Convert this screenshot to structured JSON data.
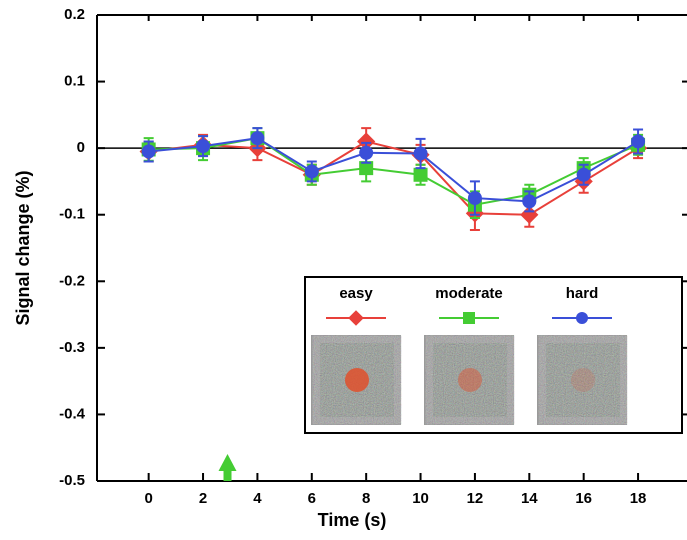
{
  "chart_data": {
    "type": "line",
    "xlabel": "Time (s)",
    "ylabel": "Signal change (%)",
    "x": [
      0,
      2,
      4,
      6,
      8,
      10,
      12,
      14,
      16,
      18
    ],
    "xlim": [
      -1.9,
      19.8
    ],
    "xticks": [
      0,
      2,
      4,
      6,
      8,
      10,
      12,
      14,
      16,
      18
    ],
    "ylim": [
      -0.5,
      0.2
    ],
    "yticks": [
      0.2,
      0.1,
      0,
      -0.1,
      -0.2,
      -0.3,
      -0.4,
      -0.5
    ],
    "arrow_x": 2.9,
    "arrow_color": "#44cc33",
    "series": [
      {
        "name": "easy",
        "color": "#e8403a",
        "marker": "diamond",
        "values": [
          -0.005,
          0.005,
          0.0,
          -0.04,
          0.01,
          -0.01,
          -0.098,
          -0.1,
          -0.05,
          0.0
        ],
        "errors": [
          0.015,
          0.015,
          0.018,
          0.015,
          0.02,
          0.015,
          0.025,
          0.018,
          0.017,
          0.015
        ]
      },
      {
        "name": "moderate",
        "color": "#44cc33",
        "marker": "square",
        "values": [
          -0.002,
          0.0,
          0.015,
          -0.04,
          -0.03,
          -0.04,
          -0.085,
          -0.07,
          -0.03,
          0.005
        ],
        "errors": [
          0.017,
          0.018,
          0.015,
          0.015,
          0.02,
          0.015,
          0.02,
          0.015,
          0.015,
          0.015
        ]
      },
      {
        "name": "hard",
        "color": "#3a4fd8",
        "marker": "circle",
        "values": [
          -0.005,
          0.003,
          0.015,
          -0.035,
          -0.007,
          -0.008,
          -0.075,
          -0.08,
          -0.04,
          0.01
        ],
        "errors": [
          0.015,
          0.015,
          0.015,
          0.015,
          0.015,
          0.022,
          0.025,
          0.015,
          0.015,
          0.018
        ]
      }
    ]
  }
}
